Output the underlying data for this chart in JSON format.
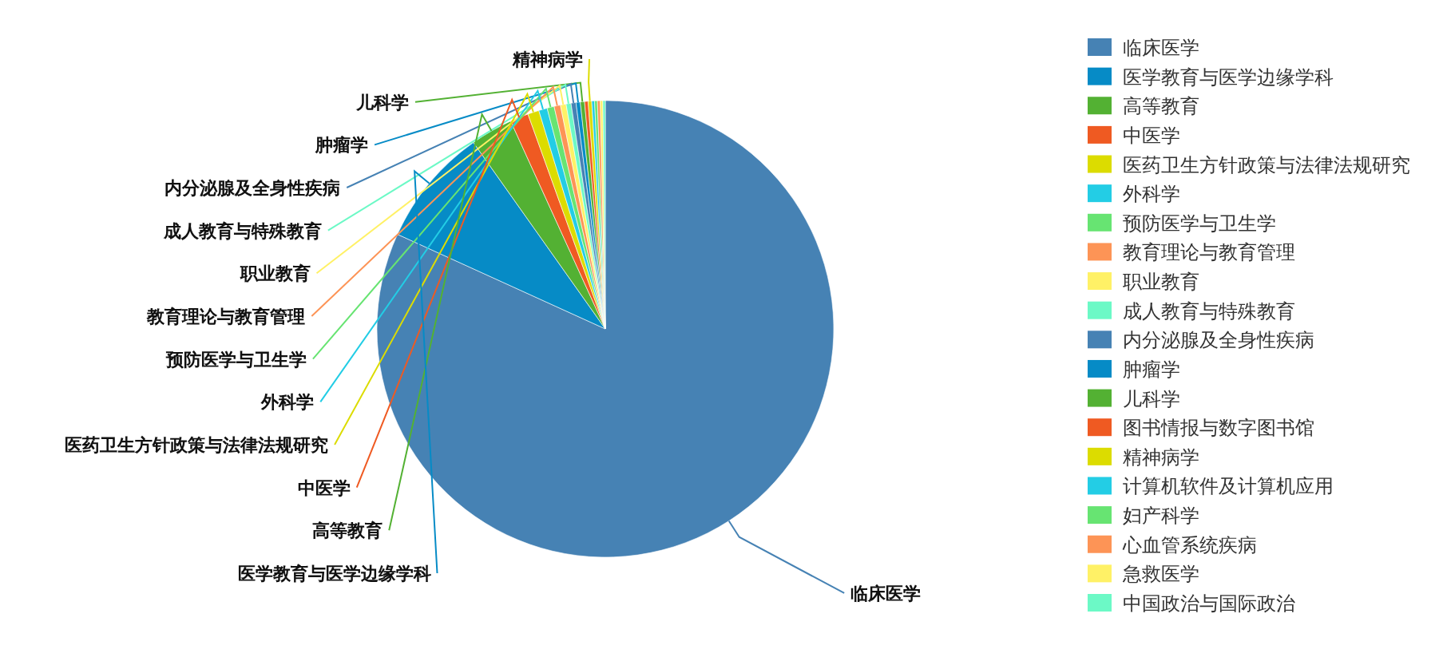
{
  "chart_data": {
    "type": "pie",
    "categories": [
      "临床医学",
      "医学教育与医学边缘学科",
      "高等教育",
      "中医学",
      "医药卫生方针政策与法律法规研究",
      "外科学",
      "预防医学与卫生学",
      "教育理论与教育管理",
      "职业教育",
      "成人教育与特殊教育",
      "内分泌腺及全身性疾病",
      "肿瘤学",
      "儿科学",
      "图书情报与数字图书馆",
      "精神病学",
      "计算机软件及计算机应用",
      "妇产科学",
      "心血管系统疾病",
      "急救医学",
      "中国政治与国际政治"
    ],
    "values": [
      81.8,
      8.4,
      3.0,
      1.3,
      0.8,
      0.6,
      0.5,
      0.45,
      0.4,
      0.35,
      0.35,
      0.3,
      0.3,
      0.25,
      0.25,
      0.2,
      0.2,
      0.2,
      0.18,
      0.17
    ],
    "colors": [
      "#4682b4",
      "#068bc6",
      "#53b133",
      "#ef5a22",
      "#dcdc00",
      "#23cde5",
      "#67e472",
      "#fd9456",
      "#fff166",
      "#6cf9c6",
      "#4682b4",
      "#068bc6",
      "#53b133",
      "#ef5a22",
      "#dcdc00",
      "#23cde5",
      "#67e472",
      "#fd9456",
      "#fff166",
      "#6cf9c6"
    ],
    "value_labels": [
      "临床医学",
      "医学教育与医学边缘学科",
      "高等教育",
      "中医学",
      "医药卫生方针政策与法律法规研究",
      "外科学",
      "预防医学与卫生学",
      "教育理论与教育管理",
      "职业教育",
      "成人教育与特殊教育",
      "内分泌腺及全身性疾病",
      "肿瘤学",
      "儿科学",
      null,
      "精神病学",
      null,
      null,
      null,
      null,
      null
    ],
    "legend": "right"
  }
}
